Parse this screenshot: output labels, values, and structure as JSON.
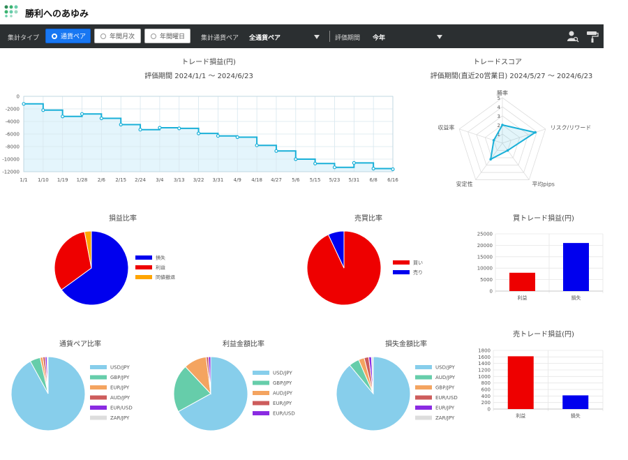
{
  "app": {
    "title": "勝利へのあゆみ"
  },
  "toolbar": {
    "aggregation_type_label": "集計タイプ",
    "radios": [
      {
        "label": "通貨ペア",
        "active": true
      },
      {
        "label": "年間月次",
        "active": false
      },
      {
        "label": "年間曜日",
        "active": false
      }
    ],
    "pair_label": "集計通貨ペア",
    "pair_value": "全通貨ペア",
    "period_label": "評価期間",
    "period_value": "今年",
    "icons": [
      "user-search-icon",
      "paint-roller-icon"
    ]
  },
  "colors": {
    "loss": "#0000ee",
    "profit": "#ee0000",
    "even": "#ffa500",
    "line": "#1ab0d8",
    "area": "#e4f5fc"
  },
  "charts": {
    "pl": {
      "title": "トレード損益(円)",
      "subtitle": "評価期間  2024/1/1 ～ 2024/6/23"
    },
    "score": {
      "title": "トレードスコア",
      "subtitle": "評価期間(直近20営業日)  2024/5/27 ～ 2024/6/23"
    },
    "pl_ratio": {
      "title": "損益比率"
    },
    "buysell_ratio": {
      "title": "売買比率"
    },
    "buy_pl": {
      "title": "買トレード損益(円)"
    },
    "sell_pl": {
      "title": "売トレード損益(円)"
    },
    "pair_ratio": {
      "title": "通貨ペア比率"
    },
    "profit_amount": {
      "title": "利益金額比率"
    },
    "loss_amount": {
      "title": "損失金額比率"
    }
  },
  "chart_data": [
    {
      "type": "line",
      "title": "トレード損益(円)",
      "x": [
        "1/1",
        "1/10",
        "1/19",
        "1/28",
        "2/6",
        "2/15",
        "2/24",
        "3/4",
        "3/13",
        "3/22",
        "3/31",
        "4/9",
        "4/18",
        "4/27",
        "5/6",
        "5/15",
        "5/23",
        "5/31",
        "6/8",
        "6/16"
      ],
      "series": [
        {
          "values": [
            -1200,
            -2200,
            -3200,
            -2800,
            -3500,
            -4500,
            -5300,
            -5000,
            -5100,
            -5900,
            -6300,
            -6500,
            -7800,
            -8700,
            -10000,
            -10700,
            -11300,
            -10600,
            -11500,
            -11600
          ]
        }
      ],
      "yticks": [
        0,
        -2000,
        -4000,
        -6000,
        -8000,
        -10000,
        -12000
      ],
      "ylim": [
        -12000,
        0
      ],
      "grid": true
    },
    {
      "type": "radar",
      "title": "トレードスコア",
      "axes": [
        "勝率",
        "リスク/リワード",
        "平均pips",
        "安定性",
        "収益率"
      ],
      "rlabels": [
        "1",
        "2",
        "3",
        "4",
        "5"
      ],
      "values": [
        2,
        3.8,
        1,
        2.2,
        1
      ]
    },
    {
      "type": "pie",
      "title": "損益比率",
      "labels": [
        "損失",
        "利益",
        "同値撤退"
      ],
      "values": [
        65,
        32,
        3
      ],
      "colors": [
        "#0000ee",
        "#ee0000",
        "#ffa500"
      ]
    },
    {
      "type": "pie",
      "title": "売買比率",
      "labels": [
        "買い",
        "売り"
      ],
      "values": [
        93,
        7
      ],
      "colors": [
        "#ee0000",
        "#0000ee"
      ]
    },
    {
      "type": "bar",
      "title": "買トレード損益(円)",
      "categories": [
        "利益",
        "損失"
      ],
      "values": [
        8000,
        21000
      ],
      "colors": [
        "#ee0000",
        "#0000ee"
      ],
      "ylim": [
        0,
        25000
      ],
      "yticks": [
        0,
        5000,
        10000,
        15000,
        20000,
        25000
      ]
    },
    {
      "type": "bar",
      "title": "売トレード損益(円)",
      "categories": [
        "利益",
        "損失"
      ],
      "values": [
        1620,
        420
      ],
      "colors": [
        "#ee0000",
        "#0000ee"
      ],
      "ylim": [
        0,
        1800
      ],
      "yticks": [
        0,
        200,
        400,
        600,
        800,
        1000,
        1200,
        1400,
        1600,
        1800
      ]
    },
    {
      "type": "pie",
      "title": "通貨ペア比率",
      "labels": [
        "USD/JPY",
        "GBP/JPY",
        "EUR/JPY",
        "AUD/JPY",
        "EUR/USD",
        "ZAR/JPY"
      ],
      "values": [
        92,
        4.5,
        1.2,
        1,
        0.8,
        0.5
      ],
      "colors": [
        "#87ceeb",
        "#66cdaa",
        "#f4a460",
        "#cd5c5c",
        "#8a2be2",
        "#dddddd"
      ]
    },
    {
      "type": "pie",
      "title": "利益金額比率",
      "labels": [
        "USD/JPY",
        "GBP/JPY",
        "AUD/JPY",
        "EUR/JPY",
        "EUR/USD"
      ],
      "values": [
        67,
        21,
        10,
        1,
        1
      ],
      "colors": [
        "#87ceeb",
        "#66cdaa",
        "#f4a460",
        "#cd5c5c",
        "#8a2be2"
      ]
    },
    {
      "type": "pie",
      "title": "損失金額比率",
      "labels": [
        "USD/JPY",
        "AUD/JPY",
        "GBP/JPY",
        "EUR/USD",
        "EUR/JPY",
        "ZAR/JPY"
      ],
      "values": [
        89,
        4.5,
        2.5,
        2,
        1.2,
        0.8
      ],
      "colors": [
        "#87ceeb",
        "#66cdaa",
        "#f4a460",
        "#cd5c5c",
        "#8a2be2",
        "#dddddd"
      ]
    }
  ]
}
